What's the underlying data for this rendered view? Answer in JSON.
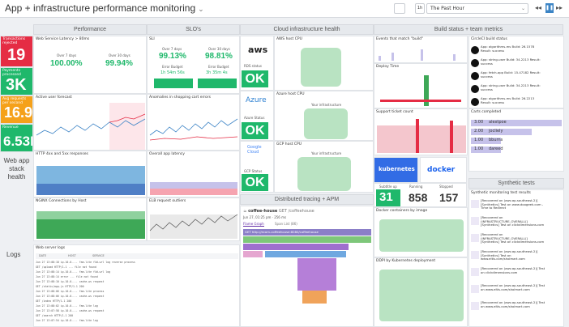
{
  "dashboard": {
    "title": "App + infrastructure performance monitoring",
    "timeframe": "The Past Hour",
    "mode": "1h",
    "colors": {
      "accent": "#632ca6",
      "green": "#1fb86b",
      "red": "#e52c44",
      "orange": "#f5a11a"
    }
  },
  "groups": {
    "performance": "Performance",
    "slos": "SLO's",
    "cloud": "Cloud infrastructure health",
    "build": "Build status + team metrics",
    "tracing": "Distributed tracing + APM",
    "synthetic": "Synthetic tests"
  },
  "left": {
    "transactions": {
      "label": "Transactions rejected",
      "value": "19"
    },
    "payments": {
      "label": "Payments processed",
      "value": "3K"
    },
    "avg_request": {
      "label": "Avg requests per second",
      "value": "16.9",
      "unit": "hits"
    },
    "revenue": {
      "label": "Revenue",
      "value": "6.53K",
      "unit": "USD"
    },
    "web_stack": "Web app stack health",
    "logs": "Logs"
  },
  "widgets": {
    "latency": "Web Service Latency > 80ms",
    "over7": "Over 7 days",
    "over30": "Over 30 days",
    "lat7": "100.00%",
    "lat30": "99.94%",
    "forecast": "Active user forecast",
    "http": "HTTP 4xx and 5xx responses",
    "nginx": "NGINX Connections by Host",
    "weblogs": "Web server logs",
    "slo": "SLI",
    "slo7": "99.13%",
    "slo30": "98.81%",
    "err_budget": "Error Budget",
    "err7": "1h 54m 56s",
    "err30": "3h 35m 4s",
    "anomalies": "Anomalies in shopping cart errors",
    "overall_latency": "Overall app latency",
    "elb": "ELB request outliers",
    "aws": "AWS host CPU",
    "rds": "RDS status",
    "azure": "Azure host CPU",
    "azure_status": "Azure Status",
    "gcp": "GCP host CPU",
    "gcp_status": "GCP Status",
    "ok": "OK",
    "infra": "Your infrastructure",
    "events": "Events that match \"build\"",
    "deploy": "Deploy Time",
    "ticket": "Support ticket count",
    "kubernetes": "kubernetes",
    "docker": "docker",
    "docker_containers": "Docker containers by image",
    "k8s_pods": "DDPI by Kubernetes deployment",
    "circleci": "CircleCI build status",
    "carts": "Carts completed",
    "synthetic_title": "Synthetic monitoring test results",
    "logs_cols": [
      "DATE",
      "HOST",
      "SERVICE"
    ]
  },
  "counts": {
    "sub1": "Subtitle up",
    "v1": "31",
    "sub2": "Running",
    "v2": "858",
    "sub3": "Stopped",
    "v3": "157"
  },
  "tracing": {
    "service": "coffee-house",
    "route": "GET /coffeehouse",
    "date": "Jun 27, 01:25 pm",
    "time": "256 ms",
    "tabs": [
      "Flame Graph",
      "Span List (86)"
    ],
    "path": "GET http://ecom-coffeehouse:8080/coffeehouse"
  },
  "carts": [
    {
      "value": "3.00",
      "name": "alextpoe"
    },
    {
      "value": "2.00",
      "name": "jocliely"
    },
    {
      "value": "1.00",
      "name": "bburns"
    },
    {
      "value": "1.00",
      "name": "dareed"
    }
  ],
  "circleci": [
    "App: algorithms-ms Build: 26.1578 Result: success",
    "App: string-user Build: 34.2213 Result: success",
    "App: fetch-app Build: 15.47182 Result: success",
    "App: string-user Build: 34.2213 Result: success",
    "App: algorithms-ms Build: 26.2213 Result: success"
  ],
  "synthetic": [
    "[Recovered on (aws:ap-southeast-2)] [Synthetics] Test on www.doogeek.com - Time to Redirect",
    "[Recovered on (INFRASTRUCTURE_OVERALL)] [Synthetics] Test on clickdimensions.com",
    "[Recovered on (INFRASTRUCTURE_OVERALL)] [Synthetics] Test on clickdimensions.com",
    "[Recovered on (aws:ap-southeast-2)] [Synthetics] Test on www.eltis.com/sholmart.com",
    "[Recovered on (aws:ap-southeast-2)] Test on clickdimensions.com",
    "[Recovered on (aws:ap-southeast-2)] Test on www.eltis.com/sholmart.com",
    "[Recovered on (aws:ap-southeast-2)] Test on www.eltis.com/sholmart.com"
  ],
  "logs": [
    "Jun 27 13:08:18 ip-10-0-... fam-lite f4d-wrl log reverse process",
    "GET /upload HTTP/1.1 ... file not found",
    "Jun 27 13:08:14 ip-10-0-... fam-lite f4d-wrl log",
    "Jun 27 13:08:14 error ... file not found",
    "Jun 27 13:08:10 ip-10-0-... cache-ws request",
    "GET /static/app.js HTTP/1.1 200",
    "Jun 27 13:08:06 ip-10-0-... fam-lite process",
    "Jun 27 13:08:06 ip-10-0-... cache-ws request",
    "GET /index HTTP/1.1 200",
    "Jun 27 13:08:02 ip-10-0-... fam-lite log",
    "Jun 27 13:07:58 ip-10-0-... cache-ws request",
    "GET /search HTTP/1.1 200",
    "Jun 27 13:07:54 ip-10-0-... fam-lite log"
  ]
}
